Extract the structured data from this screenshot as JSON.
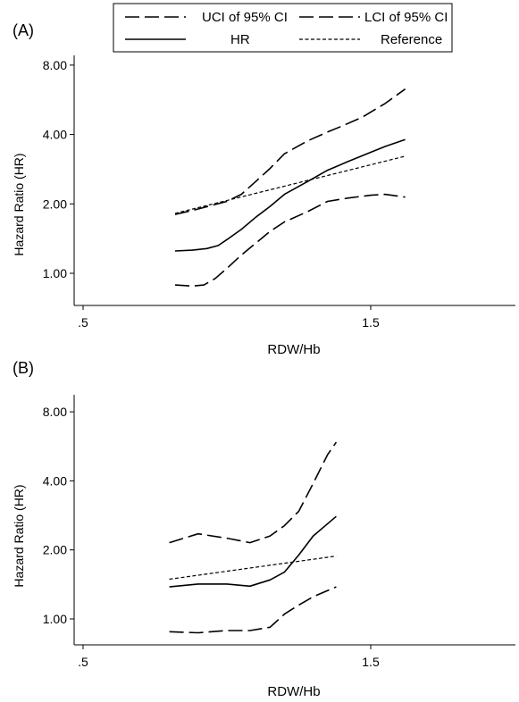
{
  "legend": {
    "items": [
      {
        "label": "UCI of 95% CI",
        "dash": "long"
      },
      {
        "label": "LCI of 95% CI",
        "dash": "long"
      },
      {
        "label": "HR",
        "dash": "solid"
      },
      {
        "label": "Reference",
        "dash": "short"
      }
    ]
  },
  "chart_data": [
    {
      "type": "line",
      "panel_label": "(A)",
      "xlabel": "RDW/Hb",
      "ylabel": "Hazard Ratio (HR)",
      "xlim": [
        0.5,
        2.0
      ],
      "ylim": [
        0.75,
        8.0
      ],
      "y_scale": "log",
      "x_ticks": [
        {
          "value": 0.5,
          "label": ".5"
        },
        {
          "value": 1.5,
          "label": "1.5"
        }
      ],
      "y_ticks": [
        {
          "value": 1,
          "label": "1.00"
        },
        {
          "value": 2,
          "label": "2.00"
        },
        {
          "value": 4,
          "label": "4.00"
        },
        {
          "value": 8,
          "label": "8.00"
        }
      ],
      "series": [
        {
          "name": "UCI of 95% CI",
          "style": "long",
          "x": [
            0.82,
            0.9,
            1.0,
            1.05,
            1.1,
            1.15,
            1.2,
            1.28,
            1.35,
            1.4,
            1.47,
            1.55,
            1.62
          ],
          "y": [
            1.8,
            1.9,
            2.05,
            2.2,
            2.5,
            2.85,
            3.3,
            3.75,
            4.1,
            4.35,
            4.75,
            5.45,
            6.3
          ]
        },
        {
          "name": "LCI of 95% CI",
          "style": "long",
          "x": [
            0.82,
            0.88,
            0.92,
            0.96,
            1.0,
            1.05,
            1.1,
            1.15,
            1.2,
            1.28,
            1.35,
            1.42,
            1.5,
            1.55,
            1.62
          ],
          "y": [
            0.89,
            0.88,
            0.89,
            0.95,
            1.05,
            1.2,
            1.35,
            1.52,
            1.67,
            1.85,
            2.05,
            2.12,
            2.18,
            2.2,
            2.14
          ]
        },
        {
          "name": "HR",
          "style": "solid",
          "x": [
            0.82,
            0.88,
            0.93,
            0.97,
            1.0,
            1.05,
            1.1,
            1.15,
            1.2,
            1.28,
            1.35,
            1.42,
            1.5,
            1.55,
            1.62
          ],
          "y": [
            1.25,
            1.26,
            1.28,
            1.32,
            1.4,
            1.55,
            1.75,
            1.95,
            2.2,
            2.5,
            2.8,
            3.05,
            3.35,
            3.55,
            3.8
          ]
        },
        {
          "name": "Reference",
          "style": "short",
          "x": [
            0.82,
            1.62
          ],
          "y": [
            1.82,
            3.22
          ]
        }
      ]
    },
    {
      "type": "line",
      "panel_label": "(B)",
      "xlabel": "RDW/Hb",
      "ylabel": "Hazard Ratio (HR)",
      "xlim": [
        0.5,
        2.0
      ],
      "ylim": [
        0.75,
        8.0
      ],
      "y_scale": "log",
      "x_ticks": [
        {
          "value": 0.5,
          "label": ".5"
        },
        {
          "value": 1.5,
          "label": "1.5"
        }
      ],
      "y_ticks": [
        {
          "value": 1,
          "label": "1.00"
        },
        {
          "value": 2,
          "label": "2.00"
        },
        {
          "value": 4,
          "label": "4.00"
        },
        {
          "value": 8,
          "label": "8.00"
        }
      ],
      "series": [
        {
          "name": "UCI of 95% CI",
          "style": "long",
          "x": [
            0.8,
            0.9,
            1.0,
            1.08,
            1.15,
            1.2,
            1.25,
            1.3,
            1.35,
            1.38
          ],
          "y": [
            2.15,
            2.35,
            2.25,
            2.15,
            2.3,
            2.55,
            2.95,
            3.9,
            5.2,
            5.9
          ]
        },
        {
          "name": "LCI of 95% CI",
          "style": "long",
          "x": [
            0.8,
            0.9,
            1.0,
            1.08,
            1.15,
            1.2,
            1.25,
            1.3,
            1.38
          ],
          "y": [
            0.88,
            0.87,
            0.89,
            0.89,
            0.92,
            1.05,
            1.15,
            1.25,
            1.38
          ]
        },
        {
          "name": "HR",
          "style": "solid",
          "x": [
            0.8,
            0.9,
            1.0,
            1.08,
            1.15,
            1.2,
            1.25,
            1.3,
            1.38
          ],
          "y": [
            1.38,
            1.42,
            1.42,
            1.39,
            1.48,
            1.6,
            1.9,
            2.3,
            2.8
          ]
        },
        {
          "name": "Reference",
          "style": "short",
          "x": [
            0.8,
            1.38
          ],
          "y": [
            1.49,
            1.88
          ]
        }
      ]
    }
  ]
}
